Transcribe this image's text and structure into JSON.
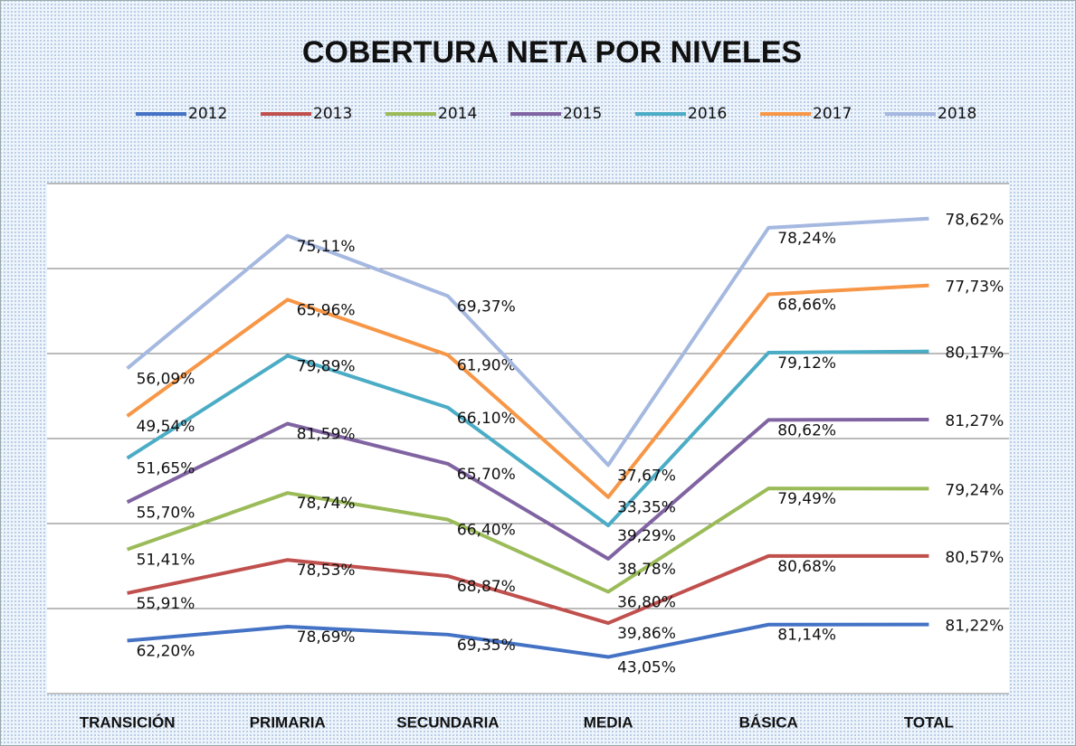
{
  "chart_data": {
    "type": "line",
    "stacked": true,
    "title": "COBERTURA NETA POR NIVELES",
    "categories": [
      "TRANSICIÓN",
      "PRIMARIA",
      "SECUNDARIA",
      "MEDIA",
      "BÁSICA",
      "TOTAL"
    ],
    "ylim": [
      0,
      600
    ],
    "yticks": [
      0,
      100,
      200,
      300,
      400,
      500,
      600
    ],
    "grid": true,
    "legend": "top",
    "series": [
      {
        "name": "2012",
        "color": "#4472c4",
        "values": [
          62.2,
          78.69,
          69.35,
          43.05,
          81.14,
          81.22
        ],
        "value_labels": [
          "62,20%",
          "78,69%",
          "69,35%",
          "43,05%",
          "81,14%",
          "81,22%"
        ]
      },
      {
        "name": "2013",
        "color": "#c0504d",
        "values": [
          55.91,
          78.53,
          68.87,
          39.86,
          80.68,
          80.57
        ],
        "value_labels": [
          "55,91%",
          "78,53%",
          "68,87%",
          "39,86%",
          "80,68%",
          "80,57%"
        ]
      },
      {
        "name": "2014",
        "color": "#9bbb59",
        "values": [
          51.41,
          78.74,
          66.4,
          36.8,
          79.49,
          79.24
        ],
        "value_labels": [
          "51,41%",
          "78,74%",
          "66,40%",
          "36,80%",
          "79,49%",
          "79,24%"
        ]
      },
      {
        "name": "2015",
        "color": "#8064a2",
        "values": [
          55.7,
          81.59,
          65.7,
          38.78,
          80.62,
          81.27
        ],
        "value_labels": [
          "55,70%",
          "81,59%",
          "65,70%",
          "38,78%",
          "80,62%",
          "81,27%"
        ]
      },
      {
        "name": "2016",
        "color": "#4bacc6",
        "values": [
          51.65,
          79.89,
          66.1,
          39.29,
          79.12,
          80.17
        ],
        "value_labels": [
          "51,65%",
          "79,89%",
          "66,10%",
          "39,29%",
          "79,12%",
          "80,17%"
        ]
      },
      {
        "name": "2017",
        "color": "#f79646",
        "values": [
          49.54,
          65.96,
          61.9,
          33.35,
          68.66,
          77.73
        ],
        "value_labels": [
          "49,54%",
          "65,96%",
          "61,90%",
          "33,35%",
          "68,66%",
          "77,73%"
        ]
      },
      {
        "name": "2018",
        "color": "#a5b8e0",
        "values": [
          56.09,
          75.11,
          69.37,
          37.67,
          78.24,
          78.62
        ],
        "value_labels": [
          "56,09%",
          "75,11%",
          "69,37%",
          "37,67%",
          "78,24%",
          "78,62%"
        ]
      }
    ]
  }
}
